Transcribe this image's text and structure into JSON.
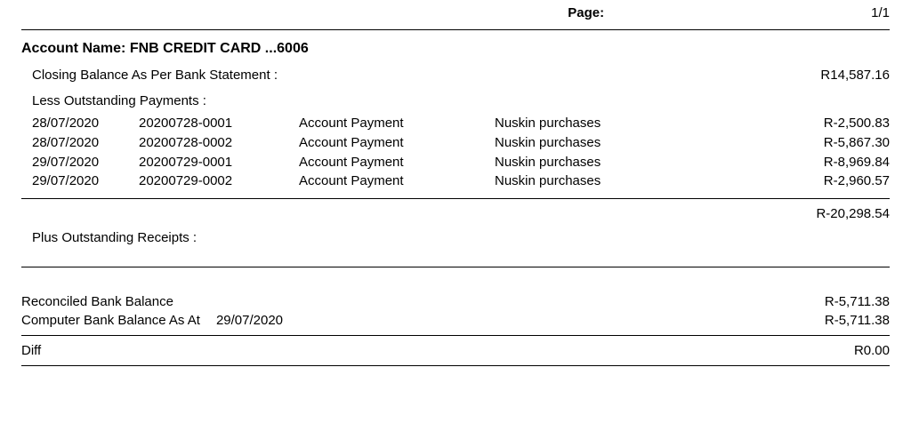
{
  "header": {
    "page_label": "Page:",
    "page_value": "1/1"
  },
  "account": {
    "name_label": "Account Name:",
    "name_value": "FNB CREDIT CARD ...6006"
  },
  "closing_balance": {
    "label": "Closing Balance As Per Bank Statement :",
    "value": "R14,587.16"
  },
  "outstanding_payments": {
    "label": "Less Outstanding Payments :",
    "rows": [
      {
        "date": "28/07/2020",
        "ref": "20200728-0001",
        "type": "Account Payment",
        "desc": "Nuskin purchases",
        "amount": "R-2,500.83"
      },
      {
        "date": "28/07/2020",
        "ref": "20200728-0002",
        "type": "Account Payment",
        "desc": "Nuskin purchases",
        "amount": "R-5,867.30"
      },
      {
        "date": "29/07/2020",
        "ref": "20200729-0001",
        "type": "Account Payment",
        "desc": "Nuskin purchases",
        "amount": "R-8,969.84"
      },
      {
        "date": "29/07/2020",
        "ref": "20200729-0002",
        "type": "Account Payment",
        "desc": "Nuskin purchases",
        "amount": "R-2,960.57"
      }
    ],
    "subtotal": "R-20,298.54"
  },
  "outstanding_receipts": {
    "label": "Plus Outstanding Receipts :"
  },
  "summary": {
    "reconciled_label": "Reconciled Bank Balance",
    "reconciled_value": "R-5,711.38",
    "computer_label": "Computer Bank Balance As At",
    "computer_date": "29/07/2020",
    "computer_value": "R-5,711.38",
    "diff_label": "Diff",
    "diff_value": "R0.00"
  }
}
